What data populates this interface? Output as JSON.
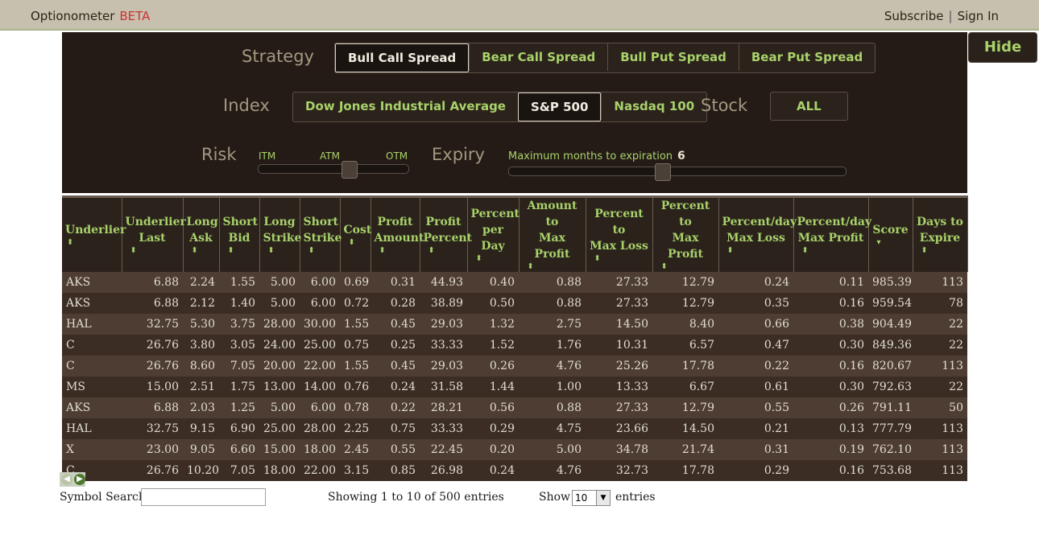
{
  "header": {
    "app_name": "Optionometer",
    "badge": "BETA",
    "subscribe": "Subscribe",
    "separator": "|",
    "sign_in": "Sign In"
  },
  "panel": {
    "hide_label": "Hide",
    "strategy_label": "Strategy",
    "strategies": [
      "Bull Call Spread",
      "Bear Call Spread",
      "Bull Put Spread",
      "Bear Put Spread"
    ],
    "strategy_selected": "Bull Call Spread",
    "index_label": "Index",
    "indexes": [
      "Dow Jones Industrial Average",
      "S&P 500",
      "Nasdaq 100"
    ],
    "index_selected": "S&P 500",
    "stock_label": "Stock",
    "stock_button": "ALL",
    "risk_label": "Risk",
    "risk_ticks": [
      "ITM",
      "ATM",
      "OTM"
    ],
    "risk_level": 0.5,
    "expiry_label": "Expiry",
    "expiry_text": "Maximum months to expiration",
    "expiry_value": "6",
    "expiry_level": 0.5
  },
  "table": {
    "headers": [
      [
        "Underlier",
        ""
      ],
      [
        "Underlier",
        "Last"
      ],
      [
        "Long",
        "Ask"
      ],
      [
        "Short",
        "Bid"
      ],
      [
        "Long",
        "Strike"
      ],
      [
        "Short",
        "Strike"
      ],
      [
        "Cost",
        ""
      ],
      [
        "Profit",
        "Amount"
      ],
      [
        "Profit",
        "Percent"
      ],
      [
        "Percent",
        "per Day"
      ],
      [
        "Amount to",
        "Max Profit"
      ],
      [
        "Percent to",
        "Max Loss"
      ],
      [
        "Percent to",
        "Max Profit"
      ],
      [
        "Percent/day",
        "Max Loss"
      ],
      [
        "Percent/day",
        "Max Profit"
      ],
      [
        "Score",
        ""
      ],
      [
        "Days to",
        "Expire"
      ]
    ],
    "sort_icon": "up-down-arrows",
    "sort_active_icon": "down-arrow",
    "rows": [
      [
        "AKS",
        "6.88",
        "2.24",
        "1.55",
        "5.00",
        "6.00",
        "0.69",
        "0.31",
        "44.93",
        "0.40",
        "0.88",
        "27.33",
        "12.79",
        "0.24",
        "0.11",
        "985.39",
        "113"
      ],
      [
        "AKS",
        "6.88",
        "2.12",
        "1.40",
        "5.00",
        "6.00",
        "0.72",
        "0.28",
        "38.89",
        "0.50",
        "0.88",
        "27.33",
        "12.79",
        "0.35",
        "0.16",
        "959.54",
        "78"
      ],
      [
        "HAL",
        "32.75",
        "5.30",
        "3.75",
        "28.00",
        "30.00",
        "1.55",
        "0.45",
        "29.03",
        "1.32",
        "2.75",
        "14.50",
        "8.40",
        "0.66",
        "0.38",
        "904.49",
        "22"
      ],
      [
        "C",
        "26.76",
        "3.80",
        "3.05",
        "24.00",
        "25.00",
        "0.75",
        "0.25",
        "33.33",
        "1.52",
        "1.76",
        "10.31",
        "6.57",
        "0.47",
        "0.30",
        "849.36",
        "22"
      ],
      [
        "C",
        "26.76",
        "8.60",
        "7.05",
        "20.00",
        "22.00",
        "1.55",
        "0.45",
        "29.03",
        "0.26",
        "4.76",
        "25.26",
        "17.78",
        "0.22",
        "0.16",
        "820.67",
        "113"
      ],
      [
        "MS",
        "15.00",
        "2.51",
        "1.75",
        "13.00",
        "14.00",
        "0.76",
        "0.24",
        "31.58",
        "1.44",
        "1.00",
        "13.33",
        "6.67",
        "0.61",
        "0.30",
        "792.63",
        "22"
      ],
      [
        "AKS",
        "6.88",
        "2.03",
        "1.25",
        "5.00",
        "6.00",
        "0.78",
        "0.22",
        "28.21",
        "0.56",
        "0.88",
        "27.33",
        "12.79",
        "0.55",
        "0.26",
        "791.11",
        "50"
      ],
      [
        "HAL",
        "32.75",
        "9.15",
        "6.90",
        "25.00",
        "28.00",
        "2.25",
        "0.75",
        "33.33",
        "0.29",
        "4.75",
        "23.66",
        "14.50",
        "0.21",
        "0.13",
        "777.79",
        "113"
      ],
      [
        "X",
        "23.00",
        "9.05",
        "6.60",
        "15.00",
        "18.00",
        "2.45",
        "0.55",
        "22.45",
        "0.20",
        "5.00",
        "34.78",
        "21.74",
        "0.31",
        "0.19",
        "762.10",
        "113"
      ],
      [
        "C",
        "26.76",
        "10.20",
        "7.05",
        "18.00",
        "22.00",
        "3.15",
        "0.85",
        "26.98",
        "0.24",
        "4.76",
        "32.73",
        "17.78",
        "0.29",
        "0.16",
        "753.68",
        "113"
      ]
    ]
  },
  "footer": {
    "prev_icon": "prev-arrow-icon",
    "next_icon": "next-arrow-icon",
    "search_label": "Symbol Search:",
    "search_value": "",
    "info": "Showing 1 to 10 of 500 entries",
    "show_label": "Show",
    "show_value": "10",
    "entries_label": "entries"
  },
  "colors": {
    "accent_green": "#a8d26a",
    "panel_bg": "#241b16",
    "beta_red": "#cc3333"
  }
}
